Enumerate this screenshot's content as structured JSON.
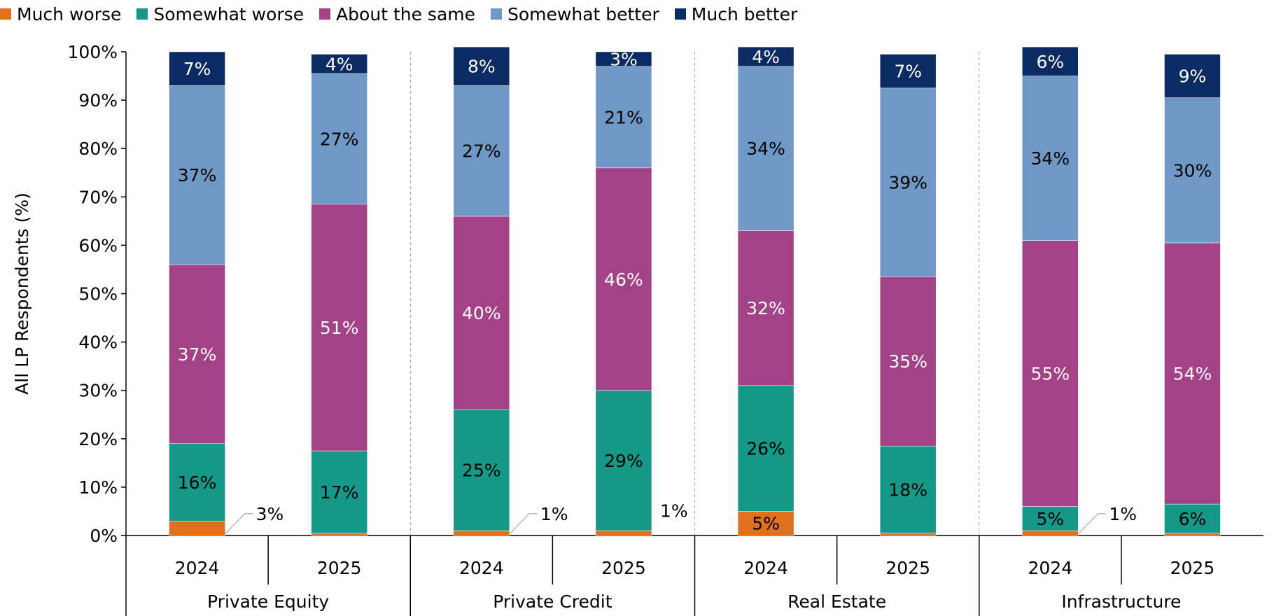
{
  "chart_data": {
    "type": "stacked-bar",
    "ylabel": "All LP Respondents (%)",
    "ylim": [
      0,
      100
    ],
    "yticks": [
      "0%",
      "10%",
      "20%",
      "30%",
      "40%",
      "50%",
      "60%",
      "70%",
      "80%",
      "90%",
      "100%"
    ],
    "legend_position": "top-left",
    "groups": [
      "Private Equity",
      "Private Credit",
      "Real Estate",
      "Infrastructure"
    ],
    "categories": [
      "2024",
      "2025",
      "2024",
      "2025",
      "2024",
      "2025",
      "2024",
      "2025"
    ],
    "series": [
      {
        "name": "Much worse",
        "color": "#E0701E",
        "values": [
          3,
          0.5,
          1,
          1,
          5,
          0.5,
          1,
          0.5
        ],
        "labels": [
          "3%",
          null,
          "1%",
          "1%",
          "5%",
          null,
          "1%",
          null
        ]
      },
      {
        "name": "Somewhat worse",
        "color": "#159888",
        "values": [
          16,
          17,
          25,
          29,
          26,
          18,
          5,
          6
        ],
        "labels": [
          "16%",
          "17%",
          "25%",
          "29%",
          "26%",
          "18%",
          "5%",
          "6%"
        ]
      },
      {
        "name": "About the same",
        "color": "#A44288",
        "values": [
          37,
          51,
          40,
          46,
          32,
          35,
          55,
          54
        ],
        "labels": [
          "37%",
          "51%",
          "40%",
          "46%",
          "32%",
          "35%",
          "55%",
          "54%"
        ]
      },
      {
        "name": "Somewhat better",
        "color": "#7098C6",
        "values": [
          37,
          27,
          27,
          21,
          34,
          39,
          34,
          30
        ],
        "labels": [
          "37%",
          "27%",
          "27%",
          "21%",
          "34%",
          "39%",
          "34%",
          "30%"
        ]
      },
      {
        "name": "Much better",
        "color": "#0D2B63",
        "values": [
          7,
          4,
          8,
          3,
          4,
          7,
          6,
          9
        ],
        "labels": [
          "7%",
          "4%",
          "8%",
          "3%",
          "4%",
          "7%",
          "6%",
          "9%"
        ]
      }
    ]
  }
}
